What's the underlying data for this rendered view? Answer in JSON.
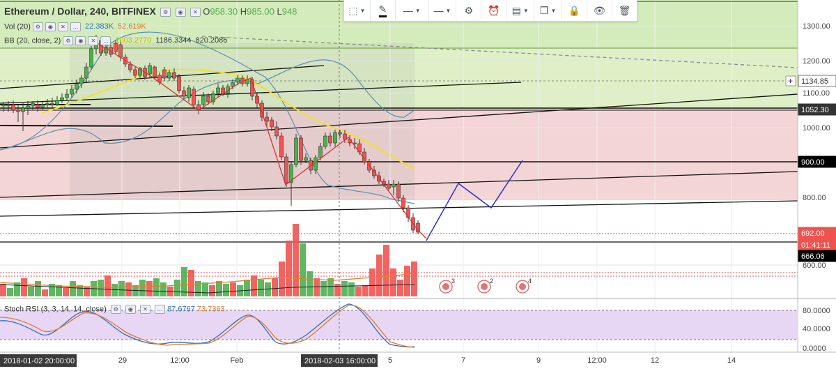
{
  "header": {
    "symbol": "Ethereum / Dollar, 240, BITFINEX",
    "ohlc": [
      {
        "key": "O",
        "value": "958.30"
      },
      {
        "key": "H",
        "value": "985.00"
      },
      {
        "key": "L",
        "value": "948"
      }
    ],
    "indicators": [
      {
        "name": "Vol (20)",
        "values": [
          "22.383K",
          "52.619K"
        ],
        "colors": [
          "#2f6fbf",
          "#e07a2a"
        ]
      },
      {
        "name": "BB (20, close, 2)",
        "values": [
          "1003.2770",
          "1186.3344",
          "820.2086"
        ],
        "colors": [
          "#c9b300",
          "#333333",
          "#333333"
        ]
      }
    ]
  },
  "toolbar": {
    "items": [
      {
        "icon": "rectangle-select-icon",
        "glyph": "⬚",
        "dropdown": true
      },
      {
        "icon": "pencil-icon",
        "glyph": "✎",
        "dropdown": false
      },
      {
        "icon": "line-style-icon",
        "glyph": "—",
        "dropdown": true
      },
      {
        "icon": "line-width-icon",
        "glyph": "—",
        "dropdown": true
      },
      {
        "icon": "gear-icon",
        "glyph": "⚙",
        "dropdown": false
      },
      {
        "icon": "alert-icon",
        "glyph": "⏰",
        "dropdown": false
      },
      {
        "icon": "layers-icon",
        "glyph": "▤",
        "dropdown": true
      },
      {
        "icon": "clone-icon",
        "glyph": "❐",
        "dropdown": true
      },
      {
        "icon": "lock-icon",
        "glyph": "🔒",
        "dropdown": false
      },
      {
        "icon": "eye-icon",
        "glyph": "👁",
        "dropdown": false
      },
      {
        "icon": "trash-icon",
        "glyph": "🗑",
        "dropdown": false
      }
    ]
  },
  "price_axis": {
    "ticks": [
      "1300.00",
      "1200.00",
      "1100.00",
      "1000.00",
      "800.00",
      "600.00"
    ],
    "labels": [
      {
        "text": "1134.85",
        "bg": "#ffffff",
        "fg": "#333333",
        "border": "#777777",
        "plus": true
      },
      {
        "text": "1052.30",
        "bg": "#333333",
        "fg": "#ffffff"
      },
      {
        "text": "900.00",
        "bg": "#000000",
        "fg": "#ffffff"
      },
      {
        "text": "692.00",
        "bg": "#ef5350",
        "fg": "#ffffff"
      },
      {
        "text": "01:41:11",
        "bg": "#ef5350",
        "fg": "#ffffff"
      },
      {
        "text": "666.06",
        "bg": "#000000",
        "fg": "#ffffff"
      }
    ]
  },
  "stoch": {
    "name": "Stoch RSI (3, 3, 14, 14, close)",
    "values": [
      "87.6767",
      "73.7363"
    ],
    "colors": [
      "#2f6fbf",
      "#e07a2a"
    ],
    "ticks": [
      "80.0000",
      "40.0000",
      "0.0000"
    ]
  },
  "time_axis": {
    "ticks": [
      "29",
      "12:00",
      "Feb",
      "5",
      "7",
      "9",
      "12:00",
      "12",
      "14"
    ],
    "left_label": "2018-01-02 20:00:00",
    "cursor_label": "2018-02-03 16:00:00"
  },
  "events": [
    "3",
    "2",
    "4"
  ],
  "colors": {
    "up": "#4caf50",
    "down": "#ef5350",
    "bb_basis": "#f0e030",
    "bb_band": "#5b8fb0",
    "projection": "#2b2fd6",
    "stoch_k": "#2f6fbf",
    "stoch_d": "#e07a2a",
    "stoch_bg": "#e8d6f5",
    "zone_green": "#dff0c6",
    "zone_red": "#f4d5d5"
  }
}
